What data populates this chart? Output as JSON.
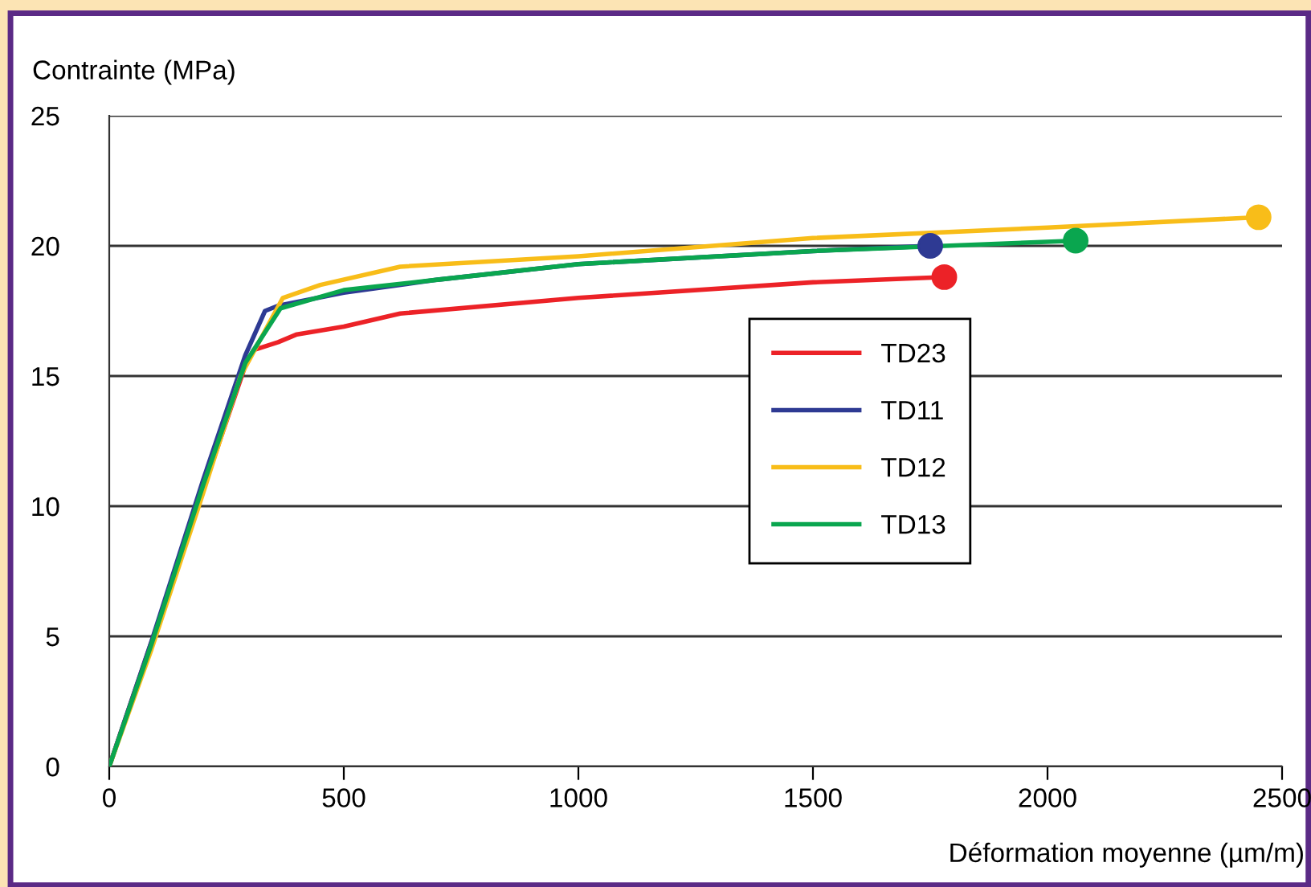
{
  "chart_data": {
    "type": "line",
    "ylabel": "Contrainte (MPa)",
    "xlabel": "Déformation moyenne (µm/m)",
    "xlim": [
      0,
      2500
    ],
    "xticks": [
      0,
      500,
      1000,
      1500,
      2000,
      2500
    ],
    "ylim": [
      0,
      25
    ],
    "yticks": [
      0,
      5,
      10,
      15,
      20,
      25
    ],
    "grid": "y",
    "legend": "center",
    "line_style": "solid",
    "series": [
      {
        "name": "TD23",
        "color": "#ec2227",
        "x": [
          0,
          290,
          308,
          360,
          400,
          500,
          620,
          1000,
          1500,
          1780
        ],
        "values": [
          0,
          15.4,
          16.0,
          16.3,
          16.6,
          16.9,
          17.4,
          18.0,
          18.6,
          18.8
        ]
      },
      {
        "name": "TD11",
        "color": "#2e3a93",
        "x": [
          0,
          90,
          200,
          290,
          332,
          360,
          500,
          700,
          1000,
          1500,
          1750
        ],
        "values": [
          0,
          4.8,
          11.0,
          15.8,
          17.5,
          17.7,
          18.2,
          18.7,
          19.3,
          19.8,
          20.0
        ]
      },
      {
        "name": "TD12",
        "color": "#f8bd19",
        "x": [
          0,
          90,
          200,
          280,
          370,
          450,
          620,
          1000,
          1500,
          2000,
          2450
        ],
        "values": [
          0,
          4.5,
          10.5,
          15.0,
          18.0,
          18.5,
          19.2,
          19.6,
          20.3,
          20.7,
          21.1
        ]
      },
      {
        "name": "TD13",
        "color": "#0aa64f",
        "x": [
          0,
          90,
          200,
          290,
          365,
          500,
          700,
          1000,
          1500,
          2060
        ],
        "values": [
          0,
          4.7,
          10.8,
          15.5,
          17.6,
          18.3,
          18.7,
          19.3,
          19.8,
          20.2
        ]
      },
      {
        "type": "scatter",
        "color": "#ec2227",
        "x": [
          1780
        ],
        "values": [
          18.8
        ]
      },
      {
        "type": "scatter",
        "color": "#2e3a93",
        "x": [
          1750
        ],
        "values": [
          20.0
        ]
      },
      {
        "type": "scatter",
        "color": "#f8bd19",
        "x": [
          2450
        ],
        "values": [
          21.1
        ]
      },
      {
        "type": "scatter",
        "color": "#0aa64f",
        "x": [
          2060
        ],
        "values": [
          20.2
        ]
      }
    ]
  }
}
